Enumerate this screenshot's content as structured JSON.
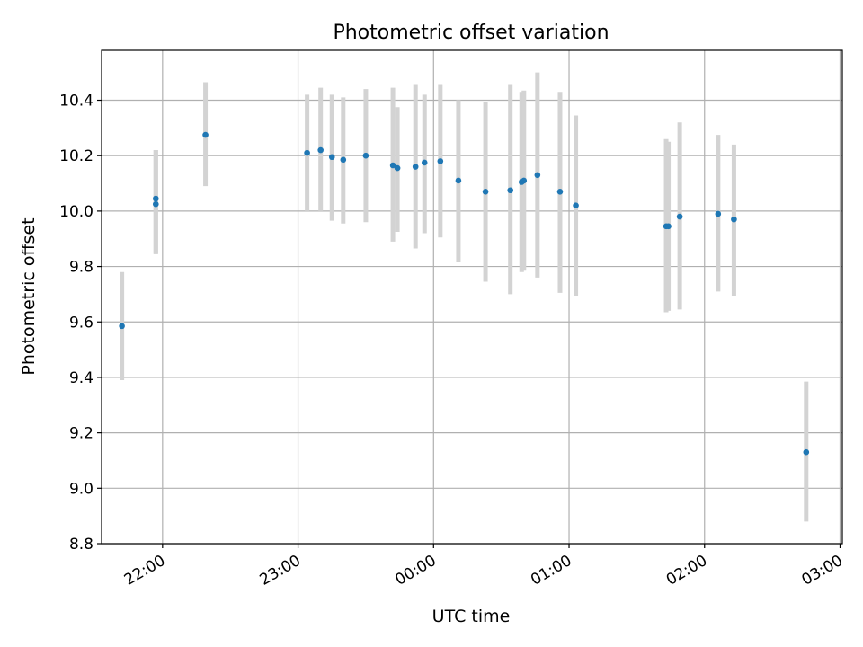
{
  "chart_data": {
    "type": "scatter",
    "title": "Photometric offset variation",
    "xlabel": "UTC time",
    "ylabel": "Photometric offset",
    "x_tick_labels": [
      "22:00",
      "23:00",
      "00:00",
      "01:00",
      "02:00",
      "03:00"
    ],
    "y_tick_labels": [
      "8.8",
      "9.0",
      "9.2",
      "9.4",
      "9.6",
      "9.8",
      "10.0",
      "10.2",
      "10.4"
    ],
    "y_ticks": [
      8.8,
      9.0,
      9.2,
      9.4,
      9.6,
      9.8,
      10.0,
      10.2,
      10.4
    ],
    "xlim": [
      "21:33",
      "03:01"
    ],
    "ylim": [
      8.8,
      10.58
    ],
    "grid": true,
    "x_tick_label_rotation": 30,
    "point_color": "#1f77b4",
    "errorbar_color": "#d3d3d3",
    "points": [
      {
        "x": "21:42",
        "y": 9.585,
        "ylow": 9.39,
        "yhigh": 9.78
      },
      {
        "x": "21:57",
        "y": 10.045,
        "ylow": 9.845,
        "yhigh": 10.22
      },
      {
        "x": "21:57",
        "y": 10.025,
        "ylow": 9.845,
        "yhigh": 10.22
      },
      {
        "x": "22:19",
        "y": 10.275,
        "ylow": 10.09,
        "yhigh": 10.465
      },
      {
        "x": "23:04",
        "y": 10.21,
        "ylow": 10.0,
        "yhigh": 10.42
      },
      {
        "x": "23:10",
        "y": 10.22,
        "ylow": 10.0,
        "yhigh": 10.445
      },
      {
        "x": "23:15",
        "y": 10.195,
        "ylow": 9.965,
        "yhigh": 10.42
      },
      {
        "x": "23:20",
        "y": 10.185,
        "ylow": 9.955,
        "yhigh": 10.41
      },
      {
        "x": "23:30",
        "y": 10.2,
        "ylow": 9.96,
        "yhigh": 10.44
      },
      {
        "x": "23:42",
        "y": 10.165,
        "ylow": 9.89,
        "yhigh": 10.445
      },
      {
        "x": "23:44",
        "y": 10.155,
        "ylow": 9.925,
        "yhigh": 10.375
      },
      {
        "x": "23:52",
        "y": 10.16,
        "ylow": 9.865,
        "yhigh": 10.455
      },
      {
        "x": "23:56",
        "y": 10.175,
        "ylow": 9.92,
        "yhigh": 10.42
      },
      {
        "x": "00:03",
        "y": 10.18,
        "ylow": 9.905,
        "yhigh": 10.455
      },
      {
        "x": "00:11",
        "y": 10.11,
        "ylow": 9.815,
        "yhigh": 10.4
      },
      {
        "x": "00:23",
        "y": 10.07,
        "ylow": 9.745,
        "yhigh": 10.395
      },
      {
        "x": "00:34",
        "y": 10.075,
        "ylow": 9.7,
        "yhigh": 10.455
      },
      {
        "x": "00:39",
        "y": 10.105,
        "ylow": 9.78,
        "yhigh": 10.43
      },
      {
        "x": "00:40",
        "y": 10.11,
        "ylow": 9.785,
        "yhigh": 10.435
      },
      {
        "x": "00:46",
        "y": 10.13,
        "ylow": 9.76,
        "yhigh": 10.5
      },
      {
        "x": "00:56",
        "y": 10.07,
        "ylow": 9.705,
        "yhigh": 10.43
      },
      {
        "x": "01:03",
        "y": 10.02,
        "ylow": 9.695,
        "yhigh": 10.345
      },
      {
        "x": "01:43",
        "y": 9.945,
        "ylow": 9.635,
        "yhigh": 10.26
      },
      {
        "x": "01:44",
        "y": 9.945,
        "ylow": 9.64,
        "yhigh": 10.25
      },
      {
        "x": "01:49",
        "y": 9.98,
        "ylow": 9.645,
        "yhigh": 10.32
      },
      {
        "x": "02:06",
        "y": 9.99,
        "ylow": 9.71,
        "yhigh": 10.275
      },
      {
        "x": "02:13",
        "y": 9.97,
        "ylow": 9.695,
        "yhigh": 10.24
      },
      {
        "x": "02:45",
        "y": 9.13,
        "ylow": 8.88,
        "yhigh": 9.385
      }
    ]
  }
}
